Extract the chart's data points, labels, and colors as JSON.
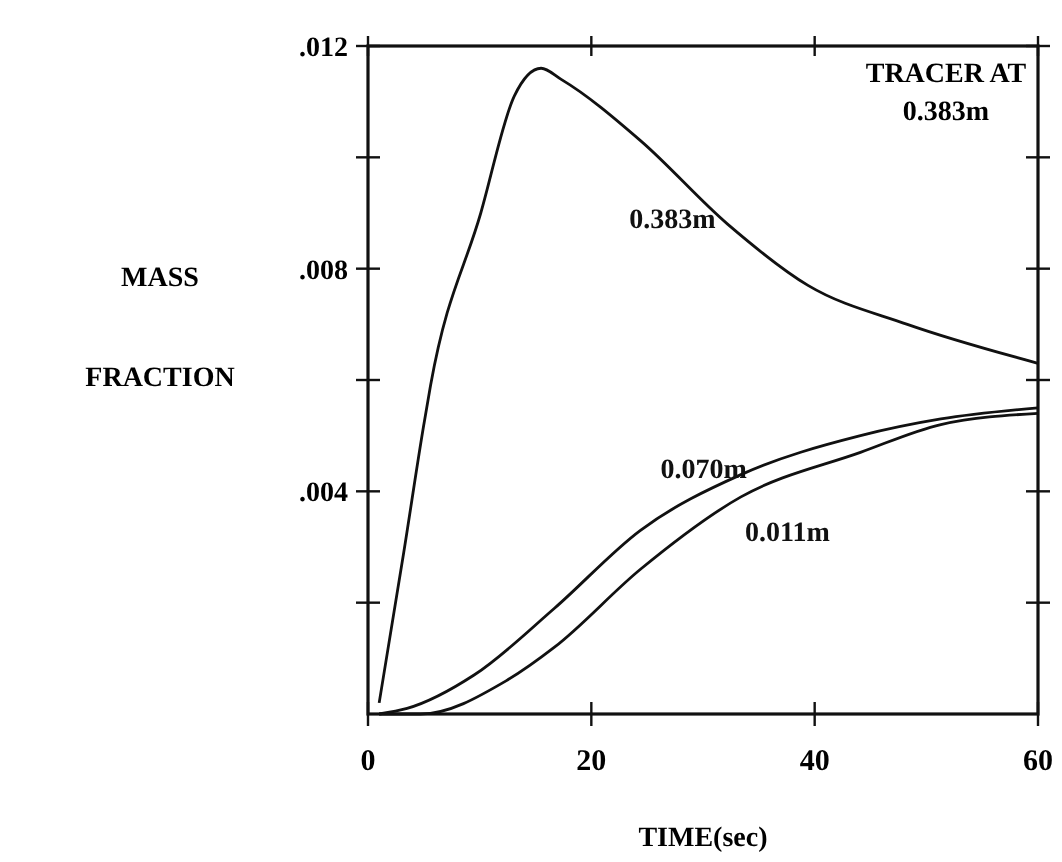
{
  "chart_data": {
    "type": "line",
    "xlabel": "TIME(sec)",
    "ylabel": "MASS\nFRACTION",
    "annotations": [
      "TRACER AT\n0.383m"
    ],
    "xlim": [
      0,
      60
    ],
    "ylim": [
      0,
      0.012
    ],
    "xticks": [
      0,
      20,
      40,
      60
    ],
    "yticks": [
      {
        "value": 0.002,
        "label": null
      },
      {
        "value": 0.004,
        "label": ".004"
      },
      {
        "value": 0.006,
        "label": null
      },
      {
        "value": 0.008,
        "label": ".008"
      },
      {
        "value": 0.01,
        "label": null
      },
      {
        "value": 0.012,
        "label": ".012"
      }
    ],
    "grid": false,
    "marker": "none",
    "line_style": "solid",
    "series": [
      {
        "name": "0.383m",
        "color": "#111111",
        "x": [
          1,
          3.2,
          5,
          5.6,
          10.1,
          13.1,
          15.5,
          17.3,
          24.4,
          32.2,
          39.4,
          48.3,
          60
        ],
        "values": [
          0.0002,
          0.0029,
          0.0052,
          0.0059,
          0.009,
          0.0111,
          0.0116,
          0.0114,
          0.0103,
          0.0088,
          0.0077,
          0.007,
          0.0063
        ]
      },
      {
        "name": "0.070m",
        "color": "#111111",
        "x": [
          1,
          3.5,
          9.5,
          16.7,
          24.4,
          33.4,
          44.1,
          51.3,
          60
        ],
        "values": [
          0,
          0.0001,
          0.0007,
          0.0019,
          0.0033,
          0.0043,
          0.005,
          0.0053,
          0.0055
        ]
      },
      {
        "name": "0.011m",
        "color": "#111111",
        "x": [
          1,
          4.7,
          12.4,
          16.7,
          24.4,
          33.4,
          44.1,
          51.3,
          60
        ],
        "values": [
          0,
          0,
          0.0006,
          0.0012,
          0.0026,
          0.0039,
          0.0047,
          0.0052,
          0.0054
        ]
      }
    ]
  }
}
